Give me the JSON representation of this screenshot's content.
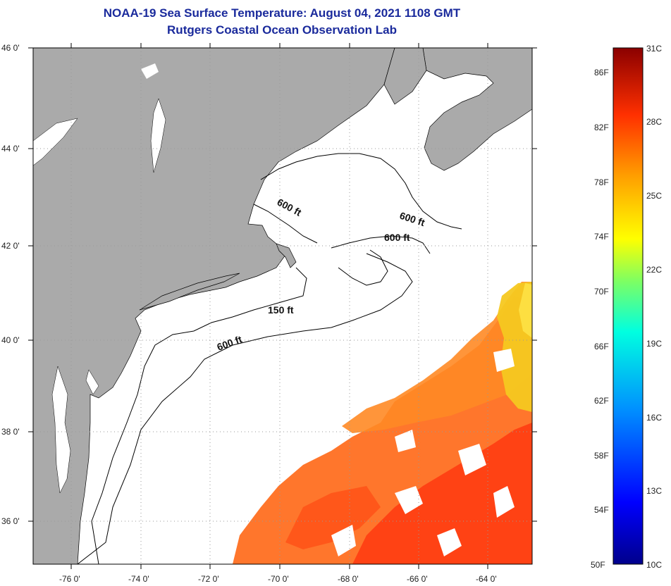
{
  "title": "NOAA-19 Sea Surface Temperature:  August 04, 2021 1108 GMT",
  "subtitle": "Rutgers Coastal Ocean Observation Lab",
  "map": {
    "lat_labels": [
      "46 0'",
      "44 0'",
      "42 0'",
      "40 0'",
      "38 0'",
      "36 0'"
    ],
    "lon_labels": [
      "-76 0'",
      "-74 0'",
      "-72 0'",
      "-70 0'",
      "-68 0'",
      "-66 0'",
      "-64 0'"
    ],
    "contour_labels": [
      "600 ft",
      "600 ft",
      "600 ft",
      "150 ft",
      "600 ft"
    ],
    "colors": {
      "land": "#aaaaaa",
      "ocean": "#ffffff",
      "contour": "#000000",
      "grid": "#888888"
    }
  },
  "colorbar": {
    "fahrenheit_labels": [
      "86F",
      "82F",
      "78F",
      "74F",
      "70F",
      "66F",
      "62F",
      "58F",
      "54F",
      "50F"
    ],
    "celsius_labels": [
      "31C",
      "28C",
      "25C",
      "22C",
      "19C",
      "16C",
      "13C",
      "10C"
    ],
    "colors": [
      "#00008b",
      "#0000ff",
      "#0080ff",
      "#00ffff",
      "#80ff80",
      "#ffff00",
      "#ff8000",
      "#ff0000",
      "#8b0000"
    ]
  }
}
